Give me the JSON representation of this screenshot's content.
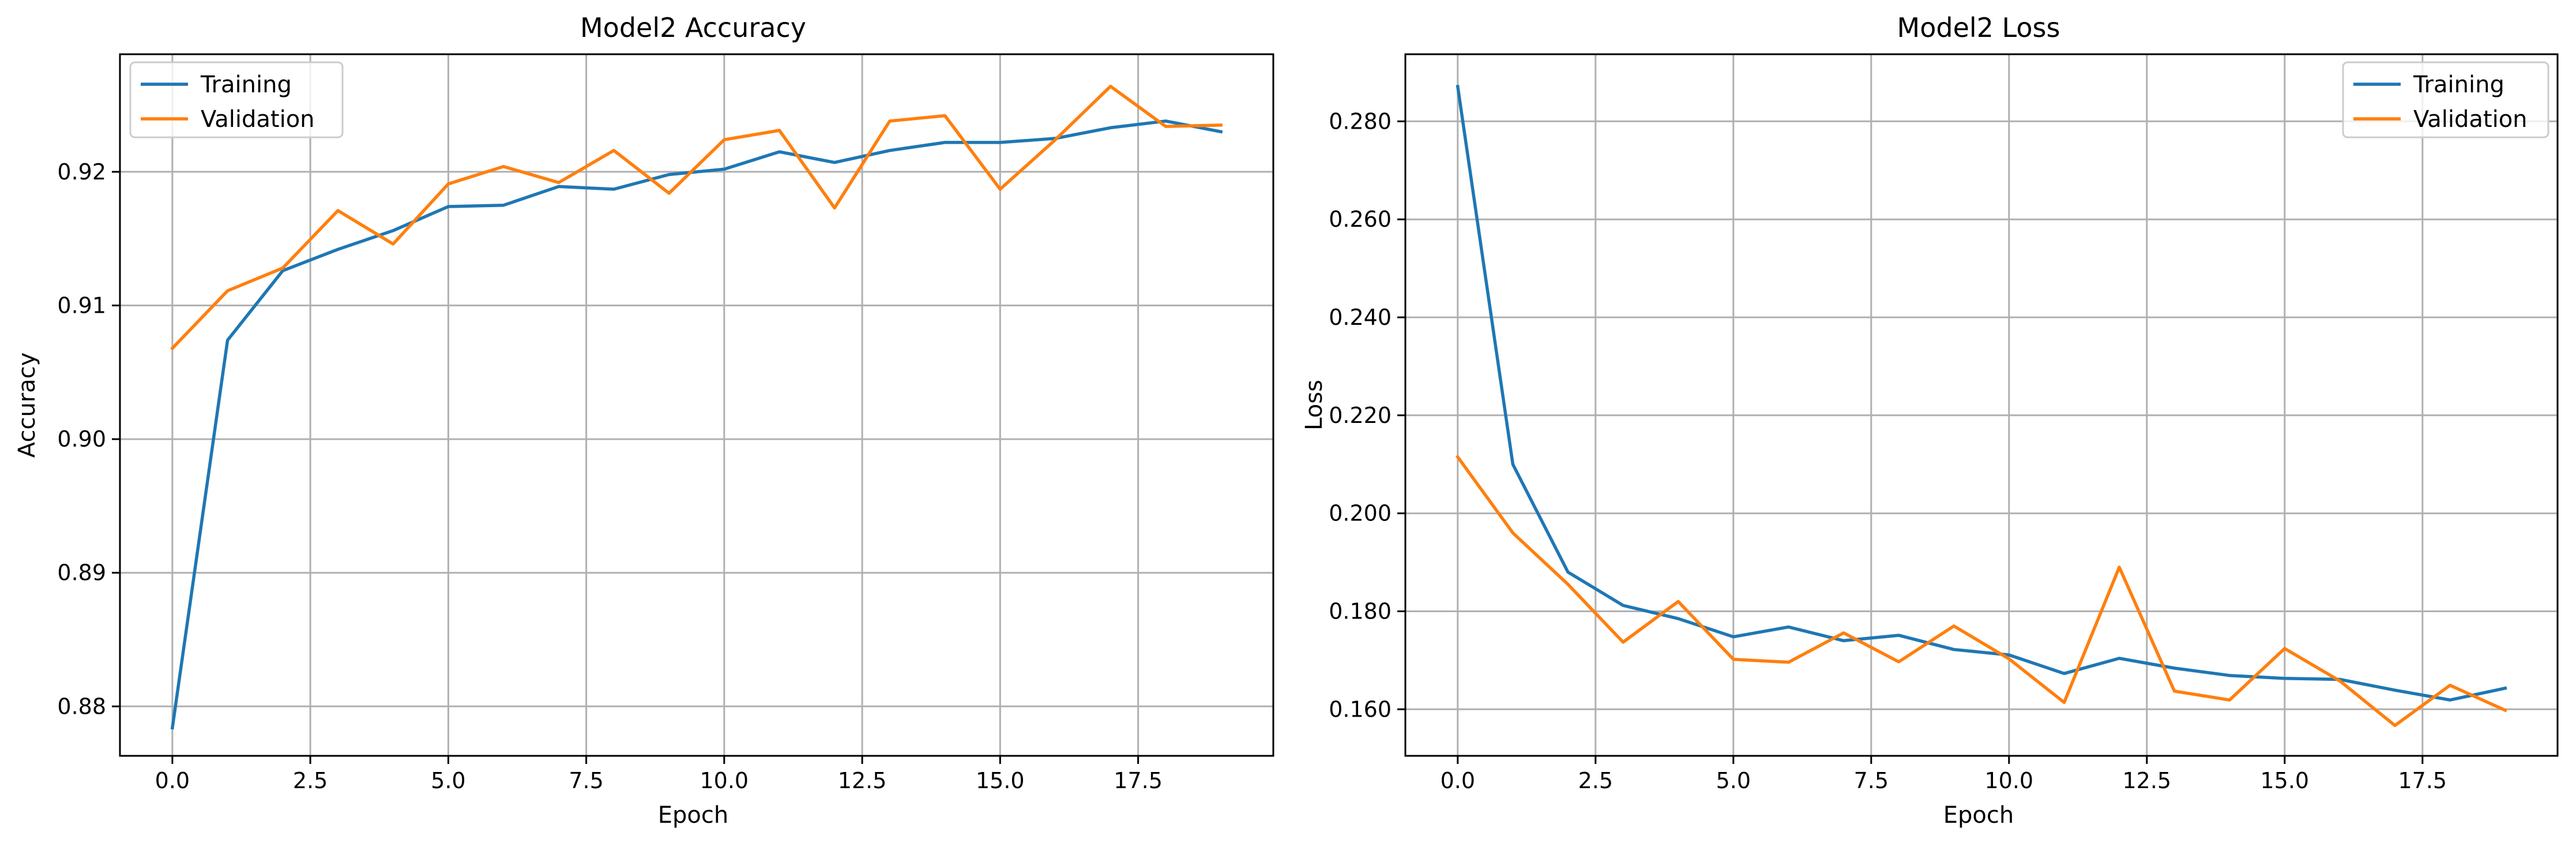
{
  "colors": {
    "training": "#1f77b4",
    "validation": "#ff7f0e"
  },
  "chart_data": [
    {
      "type": "line",
      "title": "Model2 Accuracy",
      "xlabel": "Epoch",
      "ylabel": "Accuracy",
      "xlim": [
        -0.95,
        19.95
      ],
      "ylim": [
        0.8763,
        0.9288
      ],
      "xticks": [
        0,
        2.5,
        5,
        7.5,
        10,
        12.5,
        15,
        17.5
      ],
      "xtick_labels": [
        "0.0",
        "2.5",
        "5.0",
        "7.5",
        "10.0",
        "12.5",
        "15.0",
        "17.5"
      ],
      "yticks": [
        0.88,
        0.89,
        0.9,
        0.91,
        0.92
      ],
      "ytick_labels": [
        "0.88",
        "0.89",
        "0.90",
        "0.91",
        "0.92"
      ],
      "grid": true,
      "legend": "upper-left",
      "x": [
        0,
        1,
        2,
        3,
        4,
        5,
        6,
        7,
        8,
        9,
        10,
        11,
        12,
        13,
        14,
        15,
        16,
        17,
        18,
        19
      ],
      "series": [
        {
          "name": "Training",
          "color": "#1f77b4",
          "values": [
            0.8784,
            0.9074,
            0.9126,
            0.9142,
            0.9156,
            0.9174,
            0.9175,
            0.9189,
            0.9187,
            0.9198,
            0.9202,
            0.9215,
            0.9207,
            0.9216,
            0.9222,
            0.9222,
            0.9225,
            0.9233,
            0.9238,
            0.923
          ]
        },
        {
          "name": "Validation",
          "color": "#ff7f0e",
          "values": [
            0.9068,
            0.9111,
            0.9128,
            0.9171,
            0.9146,
            0.9191,
            0.9204,
            0.9192,
            0.9216,
            0.9184,
            0.9224,
            0.9231,
            0.9173,
            0.9238,
            0.9242,
            0.9187,
            0.9224,
            0.9264,
            0.9234,
            0.9235
          ]
        }
      ]
    },
    {
      "type": "line",
      "title": "Model2 Loss",
      "xlabel": "Epoch",
      "ylabel": "Loss",
      "xlim": [
        -0.95,
        19.95
      ],
      "ylim": [
        0.1505,
        0.2937
      ],
      "xticks": [
        0,
        2.5,
        5,
        7.5,
        10,
        12.5,
        15,
        17.5
      ],
      "xtick_labels": [
        "0.0",
        "2.5",
        "5.0",
        "7.5",
        "10.0",
        "12.5",
        "15.0",
        "17.5"
      ],
      "yticks": [
        0.16,
        0.18,
        0.2,
        0.22,
        0.24,
        0.26,
        0.28
      ],
      "ytick_labels": [
        "0.160",
        "0.180",
        "0.200",
        "0.220",
        "0.240",
        "0.260",
        "0.280"
      ],
      "grid": true,
      "legend": "upper-right",
      "x": [
        0,
        1,
        2,
        3,
        4,
        5,
        6,
        7,
        8,
        9,
        10,
        11,
        12,
        13,
        14,
        15,
        16,
        17,
        18,
        19
      ],
      "series": [
        {
          "name": "Training",
          "color": "#1f77b4",
          "values": [
            0.2871,
            0.21,
            0.188,
            0.1812,
            0.1785,
            0.1748,
            0.1768,
            0.174,
            0.1751,
            0.1722,
            0.1711,
            0.1673,
            0.1704,
            0.1684,
            0.1669,
            0.1663,
            0.1661,
            0.1639,
            0.1619,
            0.1643
          ]
        },
        {
          "name": "Validation",
          "color": "#ff7f0e",
          "values": [
            0.2115,
            0.196,
            0.1855,
            0.1737,
            0.182,
            0.1702,
            0.1696,
            0.1756,
            0.1697,
            0.177,
            0.1703,
            0.1614,
            0.189,
            0.1637,
            0.1619,
            0.1724,
            0.1658,
            0.1567,
            0.1649,
            0.1598
          ]
        }
      ]
    }
  ]
}
